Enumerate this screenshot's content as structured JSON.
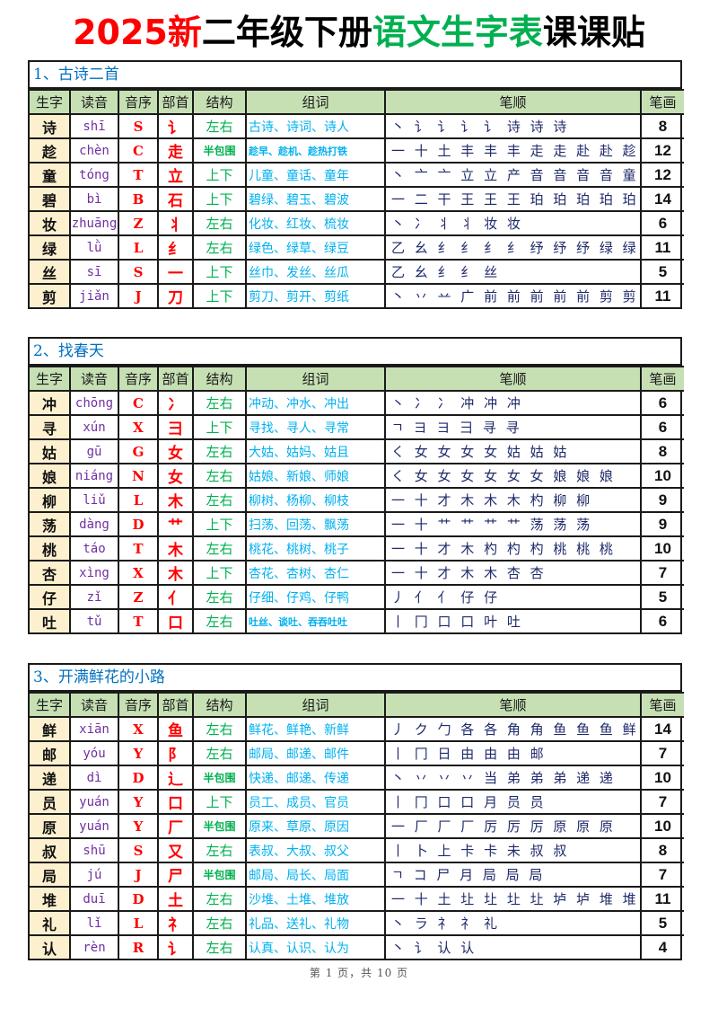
{
  "title": {
    "part_red": "2025新",
    "part_black1": "二年级下册",
    "part_green": "语文生字表",
    "part_black2": "课课贴"
  },
  "colors": {
    "title_red": "#ff0000",
    "title_green": "#00b050",
    "section_title": "#0070c0",
    "header_bg": "#c6e0b4",
    "char_bg": "#fdf0cf",
    "pinyin": "#7030a0",
    "initial": "#ff0000",
    "radical": "#ff0000",
    "structure": "#00b050",
    "words": "#00b0f0"
  },
  "headers": [
    "生字",
    "读音",
    "音序",
    "部首",
    "结构",
    "组词",
    "笔顺",
    "笔画"
  ],
  "sections": [
    {
      "title": "1、古诗二首",
      "rows": [
        {
          "char": "诗",
          "pinyin": "shī",
          "initial": "S",
          "radical": "讠",
          "structure": "左右",
          "words": "古诗、诗词、诗人",
          "strokes": "丶 讠 讠 讠 讠 诗 诗 诗",
          "count": "8"
        },
        {
          "char": "趁",
          "pinyin": "chèn",
          "initial": "C",
          "radical": "走",
          "structure": "半包围",
          "words": "趁早、趁机、趁热打铁",
          "strokes": "一 十 土 丰 丰 丰 走 走 赴 赴 趁 趁",
          "count": "12"
        },
        {
          "char": "童",
          "pinyin": "tóng",
          "initial": "T",
          "radical": "立",
          "structure": "上下",
          "words": "儿童、童话、童年",
          "strokes": "丶 亠 亠 立 立 产 音 音 音 音 童 童",
          "count": "12"
        },
        {
          "char": "碧",
          "pinyin": "bì",
          "initial": "B",
          "radical": "石",
          "structure": "上下",
          "words": "碧绿、碧玉、碧波",
          "strokes": "一 二 干 王 王 王 珀 珀 珀 珀 珀 碧 碧 碧",
          "count": "14"
        },
        {
          "char": "妆",
          "pinyin": "zhuāng",
          "initial": "Z",
          "radical": "丬",
          "structure": "左右",
          "words": "化妆、红妆、梳妆",
          "strokes": "丶 冫 丬 丬 妆 妆",
          "count": "6"
        },
        {
          "char": "绿",
          "pinyin": "lǜ",
          "initial": "L",
          "radical": "纟",
          "structure": "左右",
          "words": "绿色、绿草、绿豆",
          "strokes": "乙 幺 纟 纟 纟 纟 纾 纾 纾 绿 绿",
          "count": "11"
        },
        {
          "char": "丝",
          "pinyin": "sī",
          "initial": "S",
          "radical": "一",
          "structure": "上下",
          "words": "丝巾、发丝、丝瓜",
          "strokes": "乙 幺 纟 纟 丝",
          "count": "5"
        },
        {
          "char": "剪",
          "pinyin": "jiǎn",
          "initial": "J",
          "radical": "刀",
          "structure": "上下",
          "words": "剪刀、剪开、剪纸",
          "strokes": "丶 丷 䒑 广 前 前 前 前 前 剪 剪",
          "count": "11"
        }
      ]
    },
    {
      "title": "2、找春天",
      "rows": [
        {
          "char": "冲",
          "pinyin": "chōng",
          "initial": "C",
          "radical": "冫",
          "structure": "左右",
          "words": "冲动、冲水、冲出",
          "strokes": "丶 冫 冫 冲 冲 冲",
          "count": "6"
        },
        {
          "char": "寻",
          "pinyin": "xún",
          "initial": "X",
          "radical": "彐",
          "structure": "上下",
          "words": "寻找、寻人、寻常",
          "strokes": "ㄱ ヨ ヨ 彐 寻 寻",
          "count": "6"
        },
        {
          "char": "姑",
          "pinyin": "gū",
          "initial": "G",
          "radical": "女",
          "structure": "左右",
          "words": "大姑、姑妈、姑且",
          "strokes": "く 女 女 女 女 姑 姑 姑",
          "count": "8"
        },
        {
          "char": "娘",
          "pinyin": "niáng",
          "initial": "N",
          "radical": "女",
          "structure": "左右",
          "words": "姑娘、新娘、师娘",
          "strokes": "く 女 女 女 女 女 女 娘 娘 娘",
          "count": "10"
        },
        {
          "char": "柳",
          "pinyin": "liǔ",
          "initial": "L",
          "radical": "木",
          "structure": "左右",
          "words": "柳树、杨柳、柳枝",
          "strokes": "一 十 才 木 木 木 杓 柳 柳",
          "count": "9"
        },
        {
          "char": "荡",
          "pinyin": "dàng",
          "initial": "D",
          "radical": "艹",
          "structure": "上下",
          "words": "扫荡、回荡、飘荡",
          "strokes": "一 十 艹 艹 艹 艹 荡 荡 荡",
          "count": "9"
        },
        {
          "char": "桃",
          "pinyin": "táo",
          "initial": "T",
          "radical": "木",
          "structure": "左右",
          "words": "桃花、桃树、桃子",
          "strokes": "一 十 才 木 杓 杓 杓 桃 桃 桃",
          "count": "10"
        },
        {
          "char": "杏",
          "pinyin": "xìng",
          "initial": "X",
          "radical": "木",
          "structure": "上下",
          "words": "杏花、杏树、杏仁",
          "strokes": "一 十 才 木 木 杏 杏",
          "count": "7"
        },
        {
          "char": "仔",
          "pinyin": "zǐ",
          "initial": "Z",
          "radical": "亻",
          "structure": "左右",
          "words": "仔细、仔鸡、仔鸭",
          "strokes": "丿 亻 亻 仔 仔",
          "count": "5"
        },
        {
          "char": "吐",
          "pinyin": "tǔ",
          "initial": "T",
          "radical": "口",
          "structure": "左右",
          "words": "吐丝、谈吐、吞吞吐吐",
          "strokes": "丨 冂 口 口 叶 吐",
          "count": "6"
        }
      ]
    },
    {
      "title": "3、开满鲜花的小路",
      "rows": [
        {
          "char": "鲜",
          "pinyin": "xiān",
          "initial": "X",
          "radical": "鱼",
          "structure": "左右",
          "words": "鲜花、鲜艳、新鲜",
          "strokes": "丿 ク 勹 各 各 角 角 鱼 鱼 鱼 鲜 鲜 鲜 鲜",
          "count": "14"
        },
        {
          "char": "邮",
          "pinyin": "yóu",
          "initial": "Y",
          "radical": "阝",
          "structure": "左右",
          "words": "邮局、邮递、邮件",
          "strokes": "丨 冂 日 由 由 由 邮",
          "count": "7"
        },
        {
          "char": "递",
          "pinyin": "dì",
          "initial": "D",
          "radical": "辶",
          "structure": "半包围",
          "words": "快递、邮递、传递",
          "strokes": "丶 丷 丷 丷 当 弟 弟 弟 递 递",
          "count": "10"
        },
        {
          "char": "员",
          "pinyin": "yuán",
          "initial": "Y",
          "radical": "口",
          "structure": "上下",
          "words": "员工、成员、官员",
          "strokes": "丨 冂 口 口 月 员 员",
          "count": "7"
        },
        {
          "char": "原",
          "pinyin": "yuán",
          "initial": "Y",
          "radical": "厂",
          "structure": "半包围",
          "words": "原来、草原、原因",
          "strokes": "一 厂 厂 厂 厉 厉 厉 原 原 原",
          "count": "10"
        },
        {
          "char": "叔",
          "pinyin": "shū",
          "initial": "S",
          "radical": "又",
          "structure": "左右",
          "words": "表叔、大叔、叔父",
          "strokes": "丨 卜 上 卡 卡 未 叔 叔",
          "count": "8"
        },
        {
          "char": "局",
          "pinyin": "jú",
          "initial": "J",
          "radical": "尸",
          "structure": "半包围",
          "words": "邮局、局长、局面",
          "strokes": "ㄱ コ 尸 月 局 局 局",
          "count": "7"
        },
        {
          "char": "堆",
          "pinyin": "duī",
          "initial": "D",
          "radical": "土",
          "structure": "左右",
          "words": "沙堆、土堆、堆放",
          "strokes": "一 十 土 圵 圵 圵 圵 垆 垆 堆 堆",
          "count": "11"
        },
        {
          "char": "礼",
          "pinyin": "lǐ",
          "initial": "L",
          "radical": "礻",
          "structure": "左右",
          "words": "礼品、送礼、礼物",
          "strokes": "丶 ラ 礻 礻 礼",
          "count": "5"
        },
        {
          "char": "认",
          "pinyin": "rèn",
          "initial": "R",
          "radical": "讠",
          "structure": "左右",
          "words": "认真、认识、认为",
          "strokes": "丶 讠 认 认",
          "count": "4"
        }
      ]
    }
  ],
  "footer": "第 1 页，共 10 页"
}
